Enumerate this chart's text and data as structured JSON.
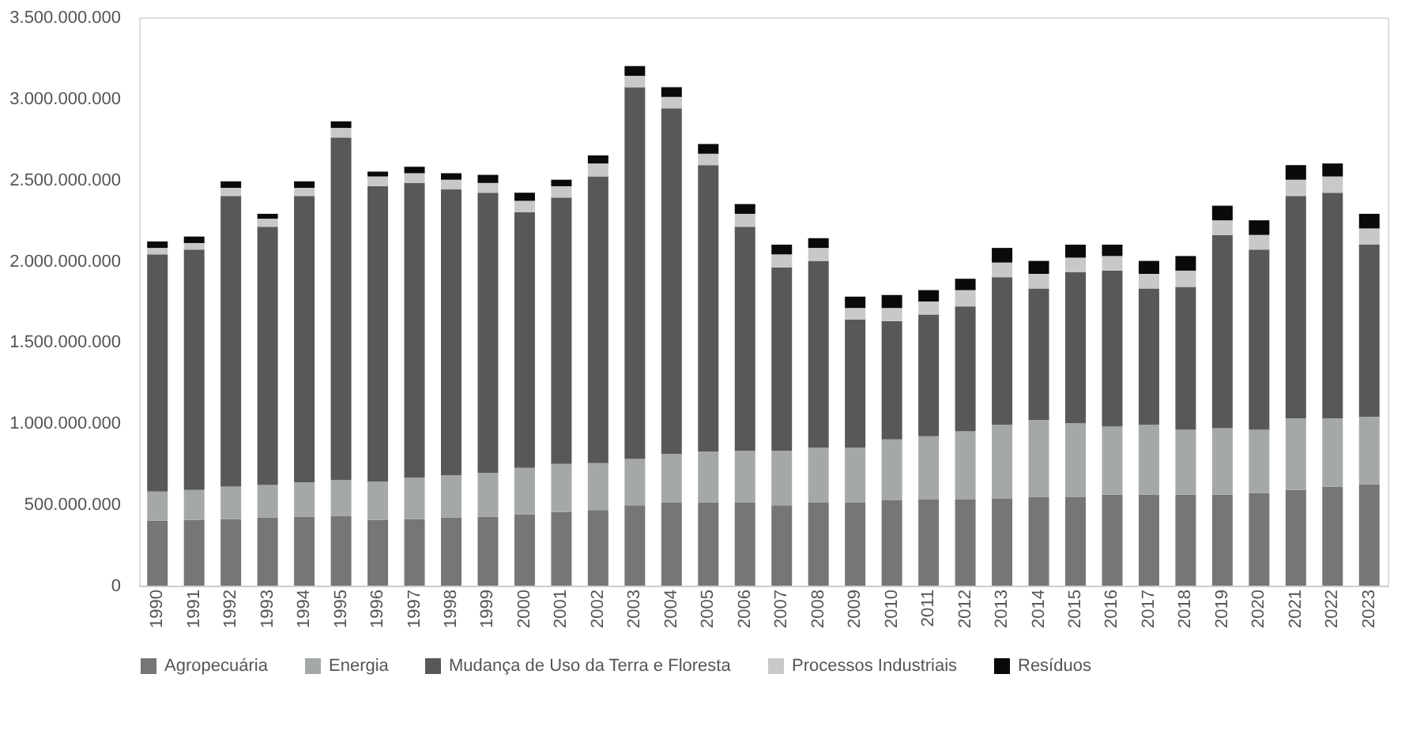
{
  "chart_data": {
    "type": "bar",
    "stacked": true,
    "legend": "bottom",
    "grid": false,
    "categories": [
      "1990",
      "1991",
      "1992",
      "1993",
      "1994",
      "1995",
      "1996",
      "1997",
      "1998",
      "1999",
      "2000",
      "2001",
      "2002",
      "2003",
      "2004",
      "2005",
      "2006",
      "2007",
      "2008",
      "2009",
      "2010",
      "2011",
      "2012",
      "2013",
      "2014",
      "2015",
      "2016",
      "2017",
      "2018",
      "2019",
      "2020",
      "2021",
      "2022",
      "2023"
    ],
    "ylim": [
      0,
      3500000000
    ],
    "yticks": [
      0,
      {
        "value": 500000000,
        "label": "500.000.000"
      },
      {
        "value": 1000000000,
        "label": "1.000.000.000"
      },
      {
        "value": 1500000000,
        "label": "1.500.000.000"
      },
      {
        "value": 2000000000,
        "label": "2.000.000.000"
      },
      {
        "value": 2500000000,
        "label": "2.500.000.000"
      },
      {
        "value": 3000000000,
        "label": "3.000.000.000"
      },
      {
        "value": 3500000000,
        "label": "3.500.000.000"
      }
    ],
    "series": [
      {
        "name": "Agropecuária",
        "color": "#767676",
        "values": [
          400000000,
          405000000,
          410000000,
          420000000,
          425000000,
          430000000,
          405000000,
          410000000,
          420000000,
          425000000,
          440000000,
          455000000,
          465000000,
          495000000,
          510000000,
          510000000,
          510000000,
          495000000,
          510000000,
          510000000,
          525000000,
          530000000,
          530000000,
          535000000,
          545000000,
          545000000,
          560000000,
          560000000,
          560000000,
          560000000,
          570000000,
          590000000,
          610000000,
          625000000
        ]
      },
      {
        "name": "Energia",
        "color": "#a5a8a8",
        "values": [
          180000000,
          185000000,
          200000000,
          200000000,
          210000000,
          220000000,
          235000000,
          255000000,
          260000000,
          270000000,
          285000000,
          295000000,
          290000000,
          285000000,
          300000000,
          315000000,
          320000000,
          335000000,
          340000000,
          340000000,
          375000000,
          390000000,
          420000000,
          455000000,
          475000000,
          455000000,
          420000000,
          430000000,
          400000000,
          410000000,
          390000000,
          440000000,
          420000000,
          415000000
        ]
      },
      {
        "name": "Mudança de Uso da Terra e Floresta",
        "color": "#58585b",
        "values": [
          1460000000,
          1480000000,
          1790000000,
          1590000000,
          1765000000,
          2110000000,
          1820000000,
          1815000000,
          1760000000,
          1725000000,
          1575000000,
          1640000000,
          1765000000,
          2290000000,
          2130000000,
          1765000000,
          1380000000,
          1130000000,
          1150000000,
          790000000,
          730000000,
          750000000,
          770000000,
          910000000,
          810000000,
          930000000,
          960000000,
          840000000,
          880000000,
          1190000000,
          1110000000,
          1370000000,
          1390000000,
          1060000000
        ]
      },
      {
        "name": "Processos Industriais",
        "color": "#c8c8c8",
        "values": [
          40000000,
          40000000,
          50000000,
          50000000,
          50000000,
          60000000,
          60000000,
          60000000,
          60000000,
          60000000,
          70000000,
          70000000,
          80000000,
          70000000,
          70000000,
          70000000,
          80000000,
          80000000,
          80000000,
          70000000,
          80000000,
          80000000,
          100000000,
          90000000,
          90000000,
          90000000,
          90000000,
          90000000,
          100000000,
          90000000,
          90000000,
          100000000,
          100000000,
          100000000
        ]
      },
      {
        "name": "Resíduos",
        "color": "#0a0a0a",
        "values": [
          40000000,
          40000000,
          40000000,
          30000000,
          40000000,
          40000000,
          30000000,
          40000000,
          40000000,
          50000000,
          50000000,
          40000000,
          50000000,
          60000000,
          60000000,
          60000000,
          60000000,
          60000000,
          60000000,
          70000000,
          80000000,
          70000000,
          70000000,
          90000000,
          80000000,
          80000000,
          70000000,
          80000000,
          90000000,
          90000000,
          90000000,
          90000000,
          80000000,
          90000000
        ]
      }
    ]
  }
}
